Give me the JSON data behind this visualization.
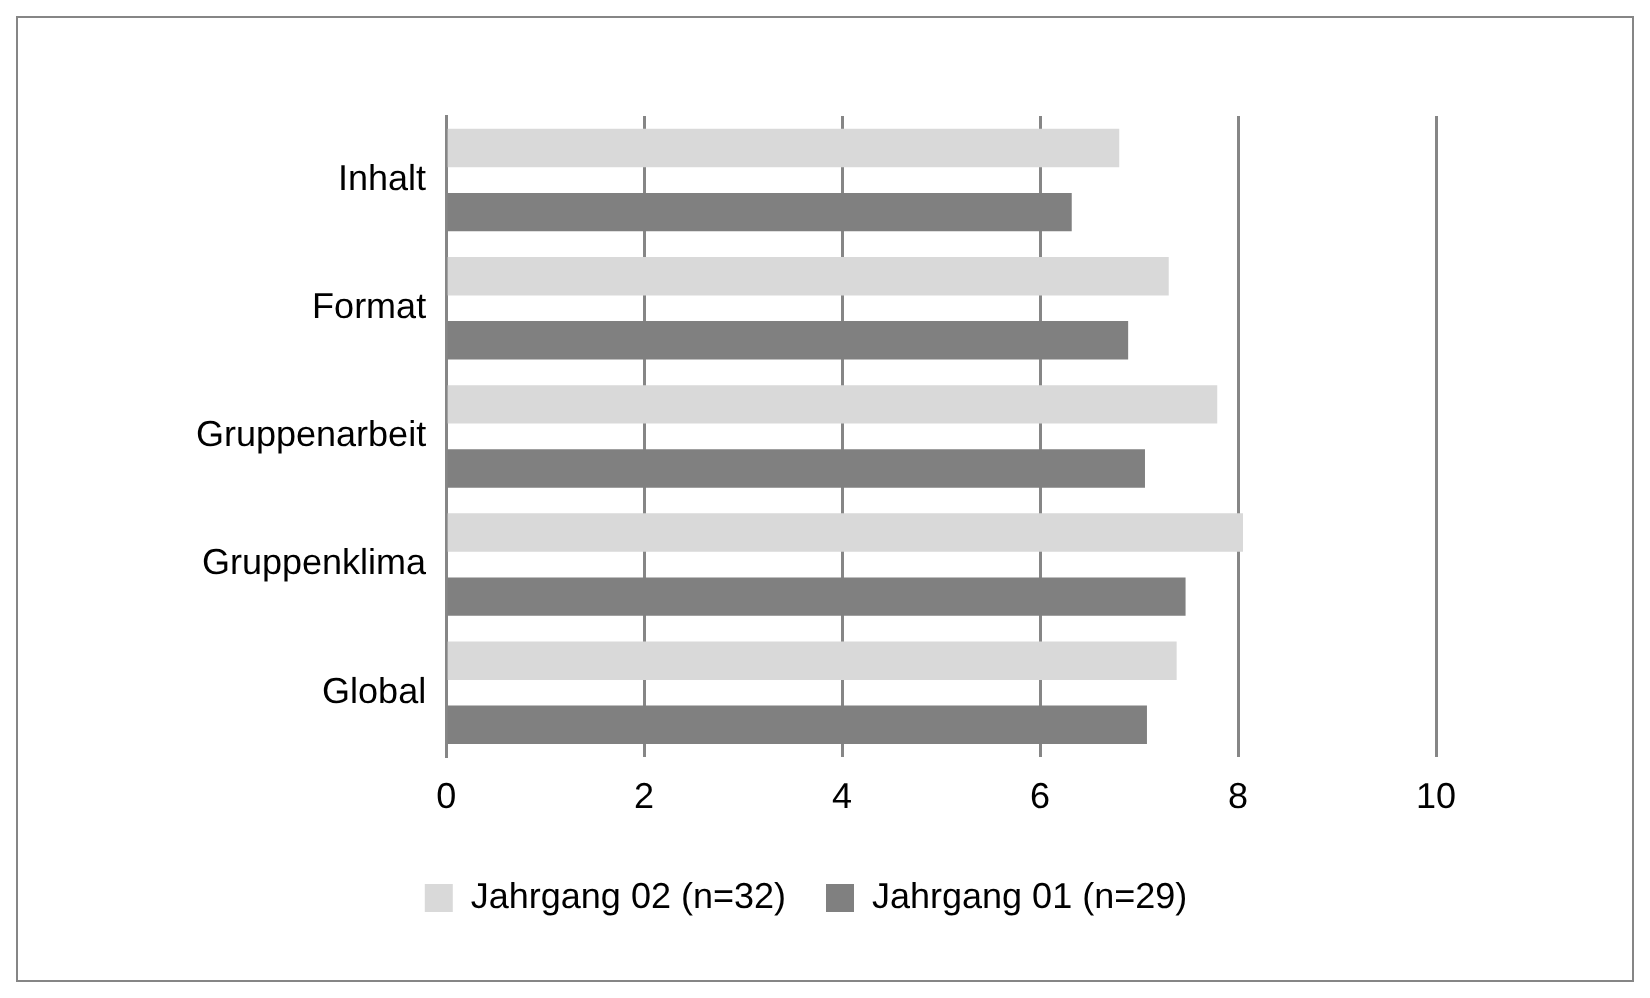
{
  "chart_data": {
    "type": "bar",
    "orientation": "horizontal",
    "categories": [
      "Inhalt",
      "Format",
      "Gruppenarbeit",
      "Gruppenklima",
      "Global"
    ],
    "series": [
      {
        "name": "Jahrgang 02 (n=32)",
        "color": "#d9d9d9",
        "values": [
          6.8,
          7.3,
          7.79,
          8.05,
          7.38
        ]
      },
      {
        "name": "Jahrgang 01 (n=29)",
        "color": "#808080",
        "values": [
          6.32,
          6.89,
          7.06,
          7.47,
          7.08
        ]
      }
    ],
    "xlim": [
      0,
      10
    ],
    "xticks": [
      0,
      2,
      4,
      6,
      8,
      10
    ],
    "grid": "x",
    "legend": "bottom"
  }
}
